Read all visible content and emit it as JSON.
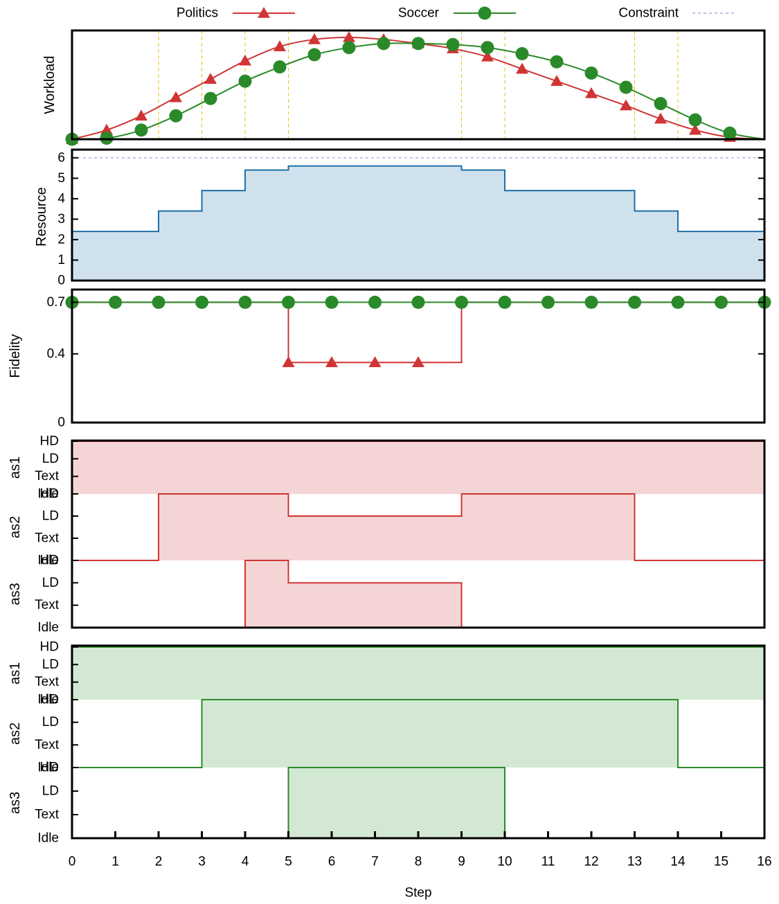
{
  "chart_data": {
    "type": "line",
    "legend": {
      "placement": "top",
      "entries": [
        {
          "label": "Politics",
          "color": "#d03434",
          "marker": "triangle"
        },
        {
          "label": "Soccer",
          "color": "#2a8a2a",
          "marker": "circle"
        },
        {
          "label": "Constraint",
          "color": "#b58ad8",
          "marker": "dashed-line"
        }
      ]
    },
    "x_axis": {
      "label": "Step",
      "ticks": [
        0,
        1,
        2,
        3,
        4,
        5,
        6,
        7,
        8,
        9,
        10,
        11,
        12,
        13,
        14,
        15,
        16
      ],
      "range": [
        0,
        16
      ]
    },
    "panels": [
      {
        "id": "workload",
        "ylabel": "Workload",
        "ylim": [
          0,
          1
        ],
        "yticks": [],
        "vertical_guides": [
          2,
          3,
          4,
          5,
          9,
          10,
          13,
          14
        ],
        "series": [
          {
            "name": "Politics",
            "x": [
              0,
              0.8,
              1.6,
              2.4,
              3.2,
              4.0,
              4.8,
              5.6,
              6.4,
              7.2,
              8.0,
              8.8,
              9.6,
              10.4,
              11.2,
              12.0,
              12.8,
              13.6,
              14.4,
              15.2
            ],
            "y": [
              0.0,
              0.09,
              0.23,
              0.41,
              0.59,
              0.77,
              0.91,
              0.98,
              1.0,
              0.98,
              0.94,
              0.89,
              0.81,
              0.69,
              0.57,
              0.45,
              0.33,
              0.2,
              0.09,
              0.02
            ]
          },
          {
            "name": "Soccer",
            "x": [
              0,
              0.8,
              1.6,
              2.4,
              3.2,
              4.0,
              4.8,
              5.6,
              6.4,
              7.2,
              8.0,
              8.8,
              9.6,
              10.4,
              11.2,
              12.0,
              12.8,
              13.6,
              14.4,
              15.2
            ],
            "y": [
              0.0,
              0.01,
              0.09,
              0.23,
              0.4,
              0.57,
              0.71,
              0.83,
              0.9,
              0.94,
              0.94,
              0.93,
              0.9,
              0.84,
              0.76,
              0.65,
              0.51,
              0.35,
              0.19,
              0.06
            ]
          }
        ]
      },
      {
        "id": "resource",
        "ylabel": "Resource",
        "ylim": [
          0,
          6.4
        ],
        "yticks": [
          0,
          1,
          2,
          3,
          4,
          5,
          6
        ],
        "constraint": 6,
        "fill": "#cfe1ec",
        "line": "#1f6fa8",
        "steps": [
          {
            "from": 0,
            "to": 2,
            "value": 2.4
          },
          {
            "from": 2,
            "to": 3,
            "value": 3.4
          },
          {
            "from": 3,
            "to": 4,
            "value": 4.4
          },
          {
            "from": 4,
            "to": 5,
            "value": 5.4
          },
          {
            "from": 5,
            "to": 9,
            "value": 5.6
          },
          {
            "from": 9,
            "to": 10,
            "value": 5.4
          },
          {
            "from": 10,
            "to": 13,
            "value": 4.4
          },
          {
            "from": 13,
            "to": 14,
            "value": 3.4
          },
          {
            "from": 14,
            "to": 16,
            "value": 2.4
          }
        ]
      },
      {
        "id": "fidelity",
        "ylabel": "Fidelity",
        "ylim": [
          0,
          0.75
        ],
        "yticks": [
          0,
          0.4,
          0.7
        ],
        "yticklabels": [
          "0",
          "0.4",
          "0.7"
        ],
        "series": [
          {
            "name": "Politics",
            "line": [
              [
                0,
                0.7
              ],
              [
                5,
                0.7
              ],
              [
                5,
                0.35
              ],
              [
                9,
                0.35
              ],
              [
                9,
                0.7
              ],
              [
                16,
                0.7
              ]
            ],
            "markers": [
              [
                5,
                0.35
              ],
              [
                6,
                0.35
              ],
              [
                7,
                0.35
              ],
              [
                8,
                0.35
              ]
            ]
          },
          {
            "name": "Soccer",
            "line": [
              [
                0,
                0.7
              ],
              [
                16,
                0.7
              ]
            ],
            "markers": [
              [
                0,
                0.7
              ],
              [
                1,
                0.7
              ],
              [
                2,
                0.7
              ],
              [
                3,
                0.7
              ],
              [
                4,
                0.7
              ],
              [
                5,
                0.7
              ],
              [
                6,
                0.7
              ],
              [
                7,
                0.7
              ],
              [
                8,
                0.7
              ],
              [
                9,
                0.7
              ],
              [
                10,
                0.7
              ],
              [
                11,
                0.7
              ],
              [
                12,
                0.7
              ],
              [
                13,
                0.7
              ],
              [
                14,
                0.7
              ],
              [
                15,
                0.7
              ],
              [
                16,
                0.7
              ]
            ]
          }
        ]
      }
    ],
    "state_levels": [
      "Idle",
      "Text",
      "LD",
      "HD"
    ],
    "state_groups": [
      {
        "group": "Politics",
        "line": "#d03434",
        "fill": "#f4d4d5",
        "rows": [
          {
            "label": "as1",
            "steps": [
              {
                "from": 0,
                "to": 16,
                "value": 3
              }
            ]
          },
          {
            "label": "as2",
            "steps": [
              {
                "from": 0,
                "to": 2,
                "value": 0
              },
              {
                "from": 2,
                "to": 5,
                "value": 3
              },
              {
                "from": 5,
                "to": 9,
                "value": 2
              },
              {
                "from": 9,
                "to": 13,
                "value": 3
              },
              {
                "from": 13,
                "to": 16,
                "value": 0
              }
            ]
          },
          {
            "label": "as3",
            "steps": [
              {
                "from": 0,
                "to": 4,
                "value": 0
              },
              {
                "from": 4,
                "to": 5,
                "value": 3
              },
              {
                "from": 5,
                "to": 9,
                "value": 2
              },
              {
                "from": 9,
                "to": 16,
                "value": 0
              }
            ]
          }
        ]
      },
      {
        "group": "Soccer",
        "line": "#2a8a2a",
        "fill": "#d3e8d3",
        "rows": [
          {
            "label": "as1",
            "steps": [
              {
                "from": 0,
                "to": 16,
                "value": 3
              }
            ]
          },
          {
            "label": "as2",
            "steps": [
              {
                "from": 0,
                "to": 3,
                "value": 0
              },
              {
                "from": 3,
                "to": 14,
                "value": 3
              },
              {
                "from": 14,
                "to": 16,
                "value": 0
              }
            ]
          },
          {
            "label": "as3",
            "steps": [
              {
                "from": 0,
                "to": 5,
                "value": 0
              },
              {
                "from": 5,
                "to": 10,
                "value": 3
              },
              {
                "from": 10,
                "to": 16,
                "value": 0
              }
            ]
          }
        ]
      }
    ]
  }
}
